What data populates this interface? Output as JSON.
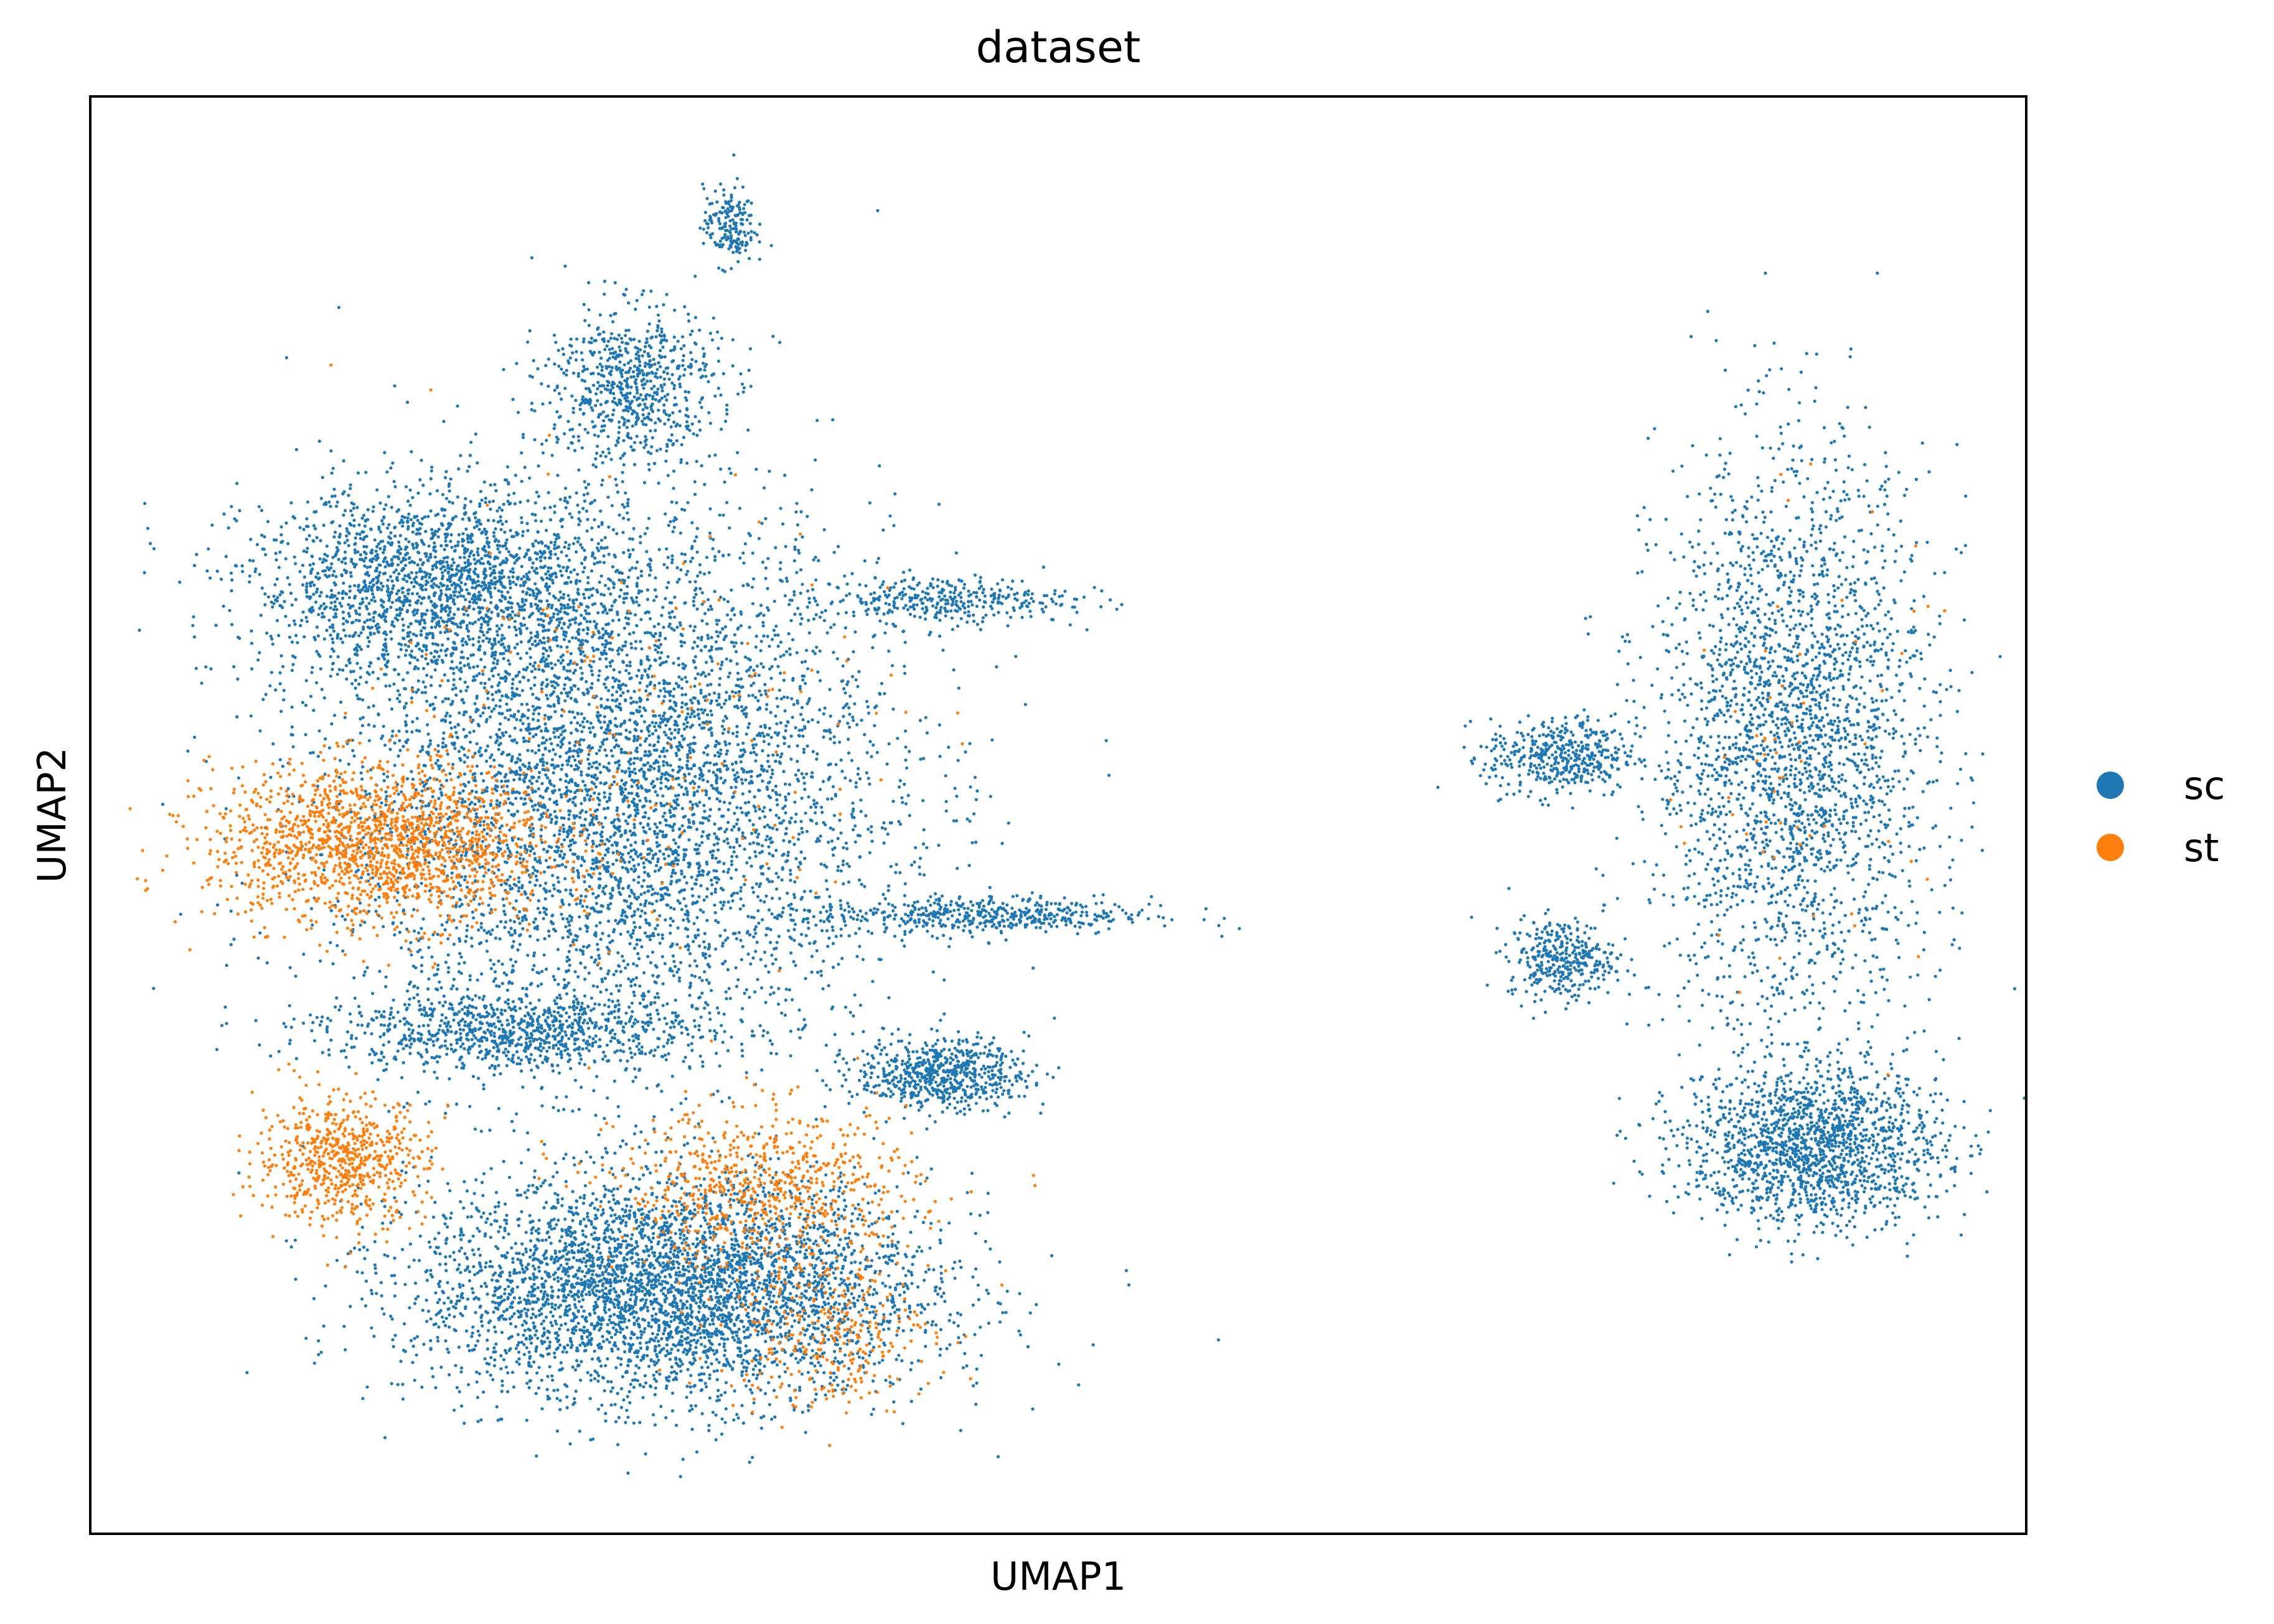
{
  "chart_data": {
    "type": "scatter",
    "title": "dataset",
    "xlabel": "UMAP1",
    "ylabel": "UMAP2",
    "xticks": [],
    "yticks": [],
    "grid": false,
    "legend_position": "right",
    "xlim": [
      0,
      100
    ],
    "ylim": [
      0,
      100
    ],
    "series": [
      {
        "name": "sc",
        "color": "#1f77b4",
        "regions": [
          {
            "region": "left-main-body",
            "center": [
              27,
              52
            ],
            "spread": [
              13,
              17
            ],
            "density": 5200
          },
          {
            "region": "left-upper-fan",
            "center": [
              18,
              66
            ],
            "spread": [
              9,
              6
            ],
            "density": 1900
          },
          {
            "region": "left-top-peak",
            "center": [
              28,
              80
            ],
            "spread": [
              4,
              5
            ],
            "density": 700
          },
          {
            "region": "left-bottom-lobe",
            "center": [
              30,
              17
            ],
            "spread": [
              12,
              7
            ],
            "density": 4200
          },
          {
            "region": "left-lower-band",
            "center": [
              22,
              35
            ],
            "spread": [
              9,
              2.5
            ],
            "density": 900
          },
          {
            "region": "left-right-cluster",
            "center": [
              44,
              32
            ],
            "spread": [
              4,
              2.2
            ],
            "density": 650
          },
          {
            "region": "left-arm-right",
            "center": [
              46,
              43
            ],
            "spread": [
              8,
              1.2
            ],
            "density": 500
          },
          {
            "region": "left-arm-upper-right",
            "center": [
              44,
              65
            ],
            "spread": [
              6,
              1.5
            ],
            "density": 350
          },
          {
            "region": "left-top-island",
            "center": [
              33,
              91
            ],
            "spread": [
              1.2,
              2.5
            ],
            "density": 180
          },
          {
            "region": "right-cluster-body",
            "center": [
              88,
              55
            ],
            "spread": [
              6.5,
              18
            ],
            "density": 2600
          },
          {
            "region": "right-cluster-bottom",
            "center": [
              89,
              27
            ],
            "spread": [
              6,
              5
            ],
            "density": 1600
          },
          {
            "region": "right-cluster-left-arm",
            "center": [
              76,
              54
            ],
            "spread": [
              3.5,
              2.5
            ],
            "density": 450
          },
          {
            "region": "right-cluster-left-blob",
            "center": [
              76,
              40
            ],
            "spread": [
              2.5,
              2.5
            ],
            "density": 350
          }
        ]
      },
      {
        "name": "st",
        "color": "#ff7f0e",
        "regions": [
          {
            "region": "left-middle-spike",
            "center": [
              15,
              48
            ],
            "spread": [
              8,
              5
            ],
            "density": 1700
          },
          {
            "region": "left-lower-spike",
            "center": [
              13,
              26
            ],
            "spread": [
              4,
              4
            ],
            "density": 650
          },
          {
            "region": "bottom-lobe-mix",
            "center": [
              35,
              24
            ],
            "spread": [
              7,
              5
            ],
            "density": 700
          },
          {
            "region": "bottom-lobe-lower-mix",
            "center": [
              38,
              14
            ],
            "spread": [
              5,
              5
            ],
            "density": 300
          },
          {
            "region": "scattered-sparse",
            "center": [
              28,
              55
            ],
            "spread": [
              12,
              15
            ],
            "density": 180
          },
          {
            "region": "right-cluster-sparse",
            "center": [
              88,
              55
            ],
            "spread": [
              6,
              15
            ],
            "density": 60
          }
        ]
      }
    ]
  }
}
